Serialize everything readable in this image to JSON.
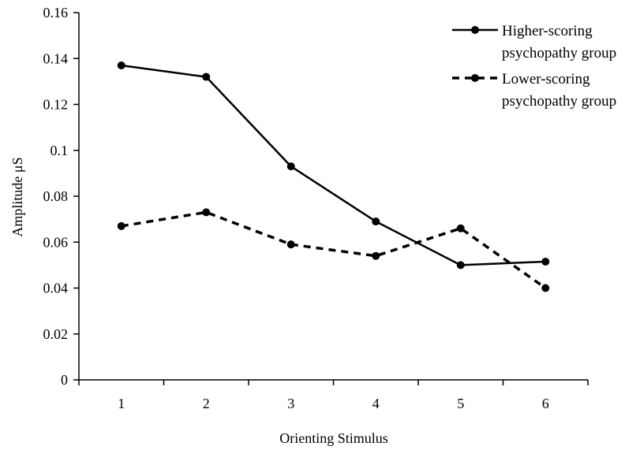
{
  "chart_data": {
    "type": "line",
    "categories": [
      "1",
      "2",
      "3",
      "4",
      "5",
      "6"
    ],
    "series": [
      {
        "name_lines": [
          "Higher-scoring",
          "psychopathy group"
        ],
        "line_style": "solid",
        "values": [
          0.137,
          0.132,
          0.093,
          0.069,
          0.05,
          0.0515
        ]
      },
      {
        "name_lines": [
          "Lower-scoring",
          "psychopathy group"
        ],
        "line_style": "dashed",
        "values": [
          0.067,
          0.073,
          0.059,
          0.054,
          0.066,
          0.04
        ]
      }
    ],
    "xlabel": "Orienting Stimulus",
    "ylabel": "Amplitude μS",
    "ylim": [
      0,
      0.16
    ],
    "yticks": [
      "0",
      "0.02",
      "0.04",
      "0.06",
      "0.08",
      "0.1",
      "0.12",
      "0.14",
      "0.16"
    ],
    "grid": false,
    "legend_position": "top-right",
    "colors": {
      "series": "#000000",
      "axis": "#000000"
    }
  }
}
